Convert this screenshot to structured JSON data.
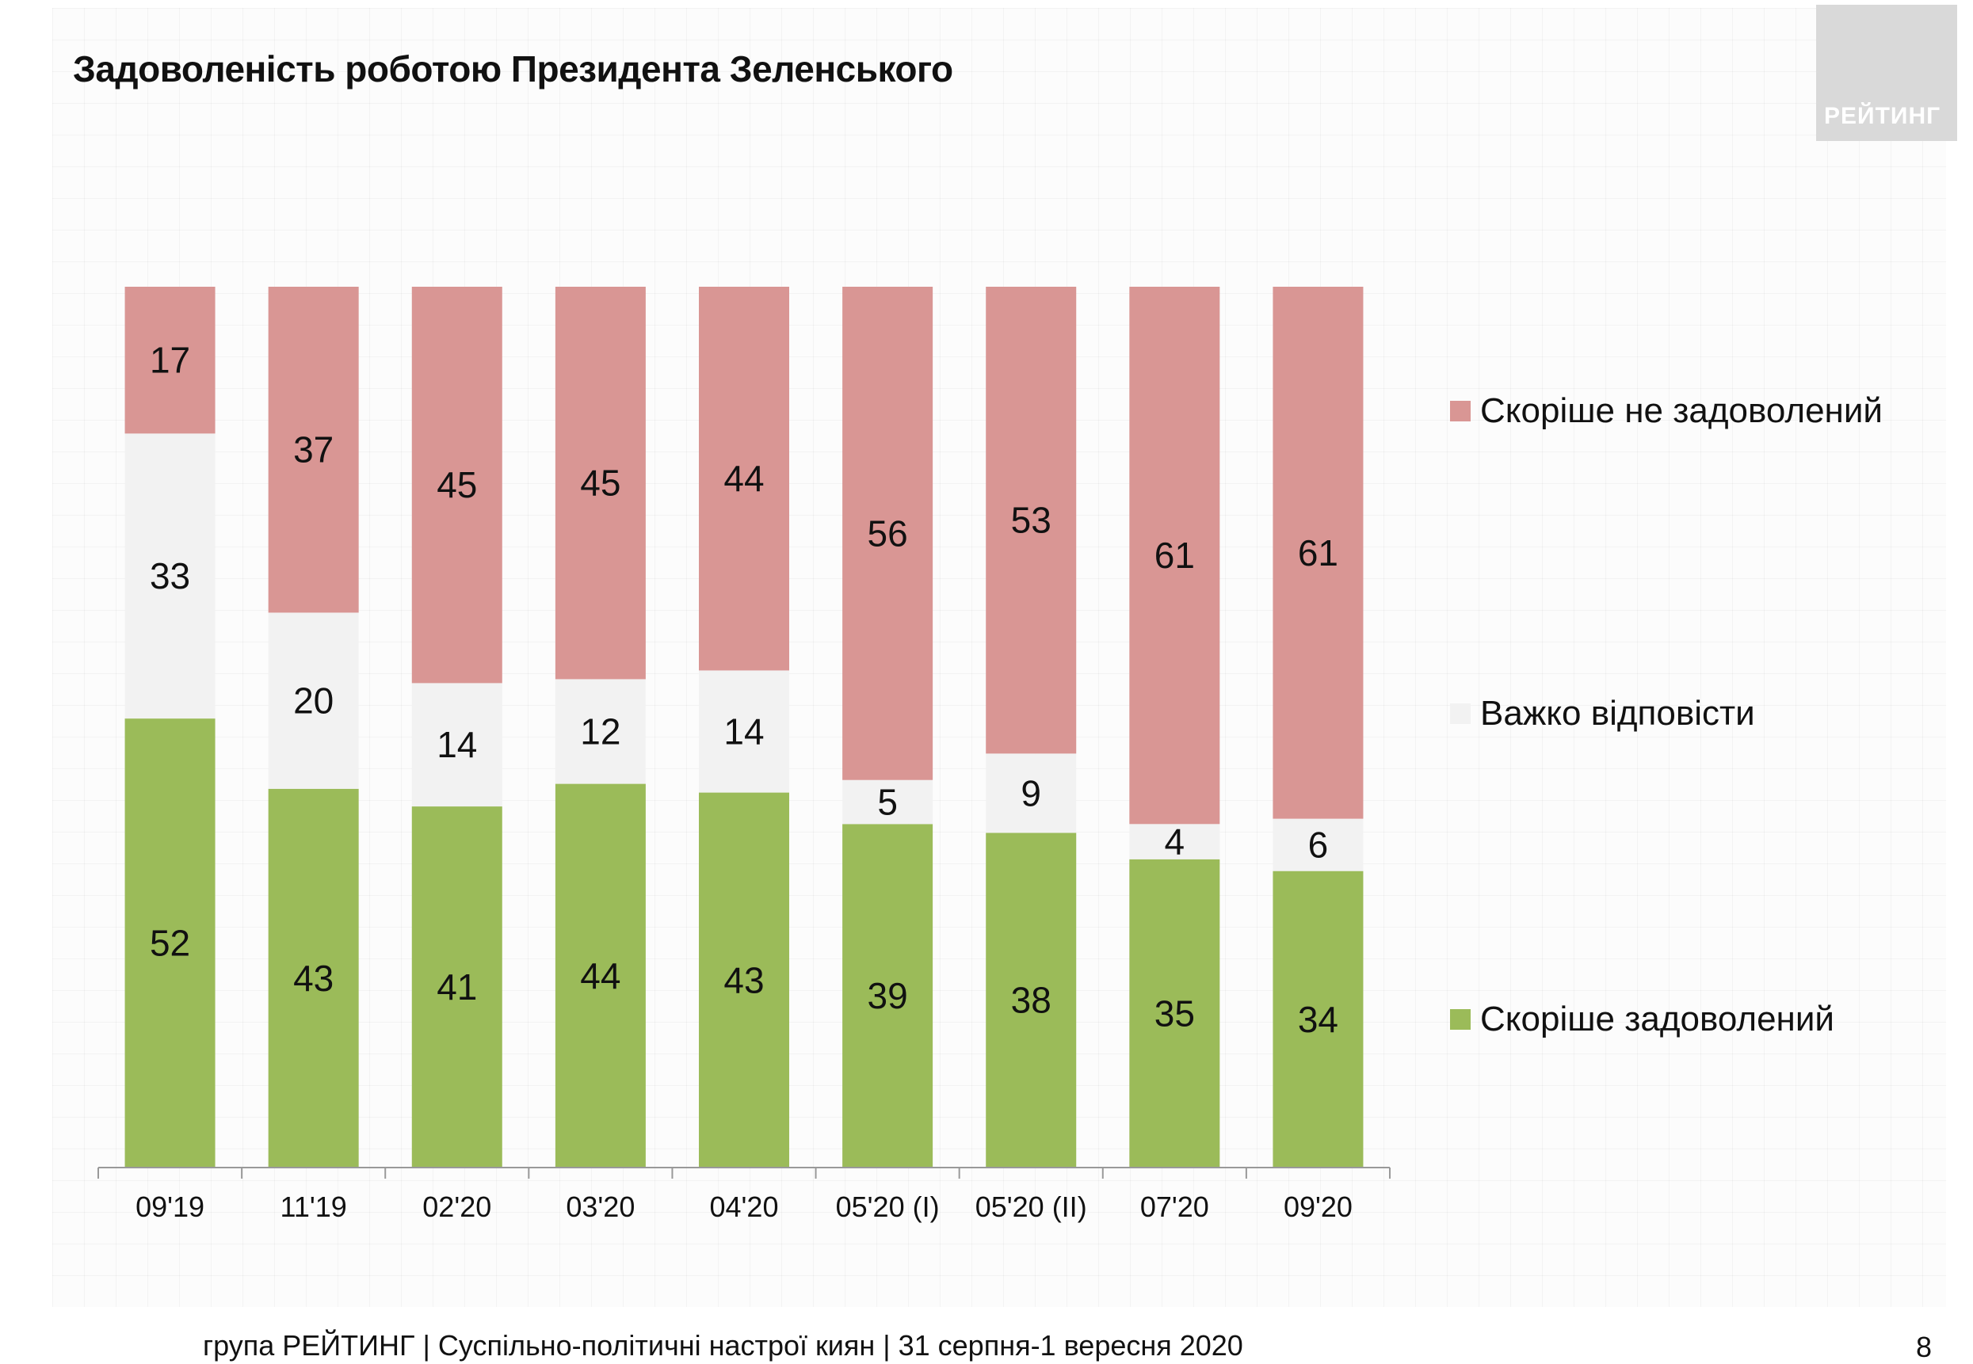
{
  "header": {
    "title": "Задоволеність роботою Президента Зеленського",
    "logo_text": "РЕЙТИНГ"
  },
  "footer": {
    "text": "група РЕЙТИНГ  |  Суспільно-політичні настрої киян | 31 серпня-1 вересня  2020",
    "page_number": "8"
  },
  "chart_data": {
    "type": "bar",
    "stacked": true,
    "categories": [
      "09'19",
      "11'19",
      "02'20",
      "03'20",
      "04'20",
      "05'20 (I)",
      "05'20 (II)",
      "07'20",
      "09'20"
    ],
    "series": [
      {
        "name": "Скоріше задоволений",
        "color": "#9bbb59",
        "values": [
          52,
          43,
          41,
          44,
          43,
          39,
          38,
          35,
          34
        ]
      },
      {
        "name": "Важко відповісти",
        "color": "#f2f2f2",
        "values": [
          33,
          20,
          14,
          12,
          14,
          5,
          9,
          4,
          6
        ]
      },
      {
        "name": "Скоріше не задоволений",
        "color": "#d99694",
        "values": [
          17,
          37,
          45,
          45,
          44,
          56,
          53,
          61,
          61
        ]
      }
    ],
    "legend_order": [
      "Скоріше не задоволений",
      "Важко відповісти",
      "Скоріше задоволений"
    ],
    "legend_position": "right",
    "ylim": [
      0,
      100
    ],
    "grid": false
  }
}
